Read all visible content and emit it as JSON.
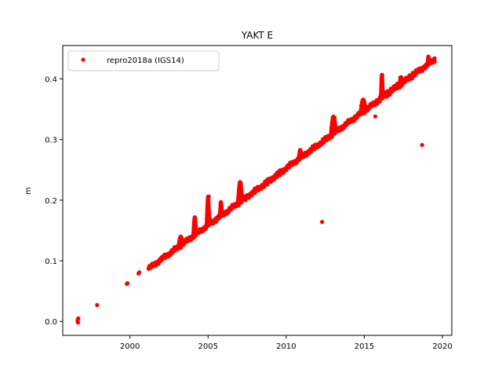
{
  "chart_data": {
    "type": "scatter",
    "title": "YAKT E",
    "xlabel": "",
    "ylabel": "m",
    "xlim": [
      1995.7,
      2020.6
    ],
    "ylim": [
      -0.023,
      0.455
    ],
    "x_ticks": [
      2000,
      2005,
      2010,
      2015,
      2020
    ],
    "x_tick_labels": [
      "2000",
      "2005",
      "2010",
      "2015",
      "2020"
    ],
    "y_ticks": [
      0.0,
      0.1,
      0.2,
      0.3,
      0.4
    ],
    "y_tick_labels": [
      "0.0",
      "0.1",
      "0.2",
      "0.3",
      "0.4"
    ],
    "grid": false,
    "legend_position": "top-left",
    "series": [
      {
        "name": "repro2018a (IGS14)",
        "color": "#ff0000",
        "marker": "circle",
        "points": [
          [
            1996.65,
            0.0
          ],
          [
            1996.66,
            0.002
          ],
          [
            1996.67,
            0.004
          ],
          [
            1996.68,
            -0.002
          ],
          [
            1996.7,
            0.005
          ],
          [
            1997.9,
            0.027
          ],
          [
            1999.8,
            0.062
          ],
          [
            1999.85,
            0.063
          ],
          [
            2000.55,
            0.079
          ],
          [
            2000.6,
            0.081
          ],
          [
            2001.2,
            0.087
          ],
          [
            2001.3,
            0.092
          ],
          [
            2001.5,
            0.095
          ],
          [
            2001.7,
            0.098
          ],
          [
            2001.9,
            0.1
          ],
          [
            2002.1,
            0.103
          ],
          [
            2002.3,
            0.107
          ],
          [
            2002.5,
            0.11
          ],
          [
            2002.7,
            0.113
          ],
          [
            2002.9,
            0.117
          ],
          [
            2003.1,
            0.12
          ],
          [
            2003.2,
            0.132
          ],
          [
            2003.3,
            0.138
          ],
          [
            2003.4,
            0.13
          ],
          [
            2003.6,
            0.131
          ],
          [
            2003.8,
            0.135
          ],
          [
            2004.0,
            0.14
          ],
          [
            2004.1,
            0.158
          ],
          [
            2004.15,
            0.17
          ],
          [
            2004.2,
            0.16
          ],
          [
            2004.3,
            0.146
          ],
          [
            2004.5,
            0.15
          ],
          [
            2004.7,
            0.154
          ],
          [
            2004.9,
            0.16
          ],
          [
            2004.95,
            0.185
          ],
          [
            2005.0,
            0.2
          ],
          [
            2005.05,
            0.206
          ],
          [
            2005.1,
            0.17
          ],
          [
            2005.3,
            0.165
          ],
          [
            2005.5,
            0.17
          ],
          [
            2005.7,
            0.175
          ],
          [
            2005.8,
            0.195
          ],
          [
            2005.9,
            0.18
          ],
          [
            2006.1,
            0.178
          ],
          [
            2006.3,
            0.182
          ],
          [
            2006.5,
            0.186
          ],
          [
            2006.7,
            0.19
          ],
          [
            2006.9,
            0.192
          ],
          [
            2007.0,
            0.215
          ],
          [
            2007.1,
            0.228
          ],
          [
            2007.2,
            0.205
          ],
          [
            2007.4,
            0.2
          ],
          [
            2007.6,
            0.205
          ],
          [
            2007.8,
            0.208
          ],
          [
            2008.0,
            0.212
          ],
          [
            2008.2,
            0.216
          ],
          [
            2008.4,
            0.219
          ],
          [
            2008.6,
            0.222
          ],
          [
            2008.8,
            0.226
          ],
          [
            2009.0,
            0.23
          ],
          [
            2009.2,
            0.234
          ],
          [
            2009.4,
            0.238
          ],
          [
            2009.6,
            0.241
          ],
          [
            2009.8,
            0.245
          ],
          [
            2010.0,
            0.25
          ],
          [
            2010.2,
            0.254
          ],
          [
            2010.4,
            0.258
          ],
          [
            2010.6,
            0.262
          ],
          [
            2010.8,
            0.268
          ],
          [
            2010.9,
            0.28
          ],
          [
            2011.0,
            0.27
          ],
          [
            2011.2,
            0.272
          ],
          [
            2011.4,
            0.278
          ],
          [
            2011.6,
            0.28
          ],
          [
            2011.8,
            0.284
          ],
          [
            2012.0,
            0.287
          ],
          [
            2012.2,
            0.291
          ],
          [
            2012.3,
            0.164
          ],
          [
            2012.4,
            0.295
          ],
          [
            2012.6,
            0.299
          ],
          [
            2012.8,
            0.303
          ],
          [
            2012.9,
            0.32
          ],
          [
            2013.0,
            0.33
          ],
          [
            2013.1,
            0.336
          ],
          [
            2013.2,
            0.316
          ],
          [
            2013.4,
            0.318
          ],
          [
            2013.6,
            0.322
          ],
          [
            2013.8,
            0.326
          ],
          [
            2014.0,
            0.33
          ],
          [
            2014.2,
            0.334
          ],
          [
            2014.4,
            0.338
          ],
          [
            2014.6,
            0.342
          ],
          [
            2014.8,
            0.356
          ],
          [
            2015.0,
            0.362
          ],
          [
            2015.2,
            0.35
          ],
          [
            2015.4,
            0.354
          ],
          [
            2015.7,
            0.338
          ],
          [
            2015.8,
            0.365
          ],
          [
            2016.0,
            0.37
          ],
          [
            2016.1,
            0.4
          ],
          [
            2016.15,
            0.406
          ],
          [
            2016.3,
            0.378
          ],
          [
            2016.5,
            0.38
          ],
          [
            2016.7,
            0.384
          ],
          [
            2016.9,
            0.388
          ],
          [
            2017.1,
            0.392
          ],
          [
            2017.3,
            0.402
          ],
          [
            2017.5,
            0.398
          ],
          [
            2017.7,
            0.402
          ],
          [
            2017.9,
            0.406
          ],
          [
            2018.1,
            0.41
          ],
          [
            2018.3,
            0.414
          ],
          [
            2018.5,
            0.417
          ],
          [
            2018.7,
            0.291
          ],
          [
            2018.8,
            0.42
          ],
          [
            2019.0,
            0.424
          ],
          [
            2019.1,
            0.435
          ],
          [
            2019.2,
            0.428
          ],
          [
            2019.4,
            0.432
          ],
          [
            2019.5,
            0.434
          ]
        ],
        "trend": {
          "x_start": 2001.2,
          "x_end": 2019.5,
          "y_start": 0.087,
          "y_end": 0.432
        },
        "excursions": [
          {
            "x_start": 2003.1,
            "x_end": 2003.4,
            "y_peak": 0.14
          },
          {
            "x_start": 2004.05,
            "x_end": 2004.25,
            "y_peak": 0.172
          },
          {
            "x_start": 2004.9,
            "x_end": 2005.1,
            "y_peak": 0.206
          },
          {
            "x_start": 2005.75,
            "x_end": 2005.9,
            "y_peak": 0.197
          },
          {
            "x_start": 2006.9,
            "x_end": 2007.2,
            "y_peak": 0.23
          },
          {
            "x_start": 2010.8,
            "x_end": 2011.0,
            "y_peak": 0.283
          },
          {
            "x_start": 2012.85,
            "x_end": 2013.2,
            "y_peak": 0.338
          },
          {
            "x_start": 2014.75,
            "x_end": 2015.1,
            "y_peak": 0.366
          },
          {
            "x_start": 2016.05,
            "x_end": 2016.2,
            "y_peak": 0.407
          },
          {
            "x_start": 2017.25,
            "x_end": 2017.45,
            "y_peak": 0.403
          },
          {
            "x_start": 2019.05,
            "x_end": 2019.15,
            "y_peak": 0.437
          }
        ]
      }
    ]
  }
}
